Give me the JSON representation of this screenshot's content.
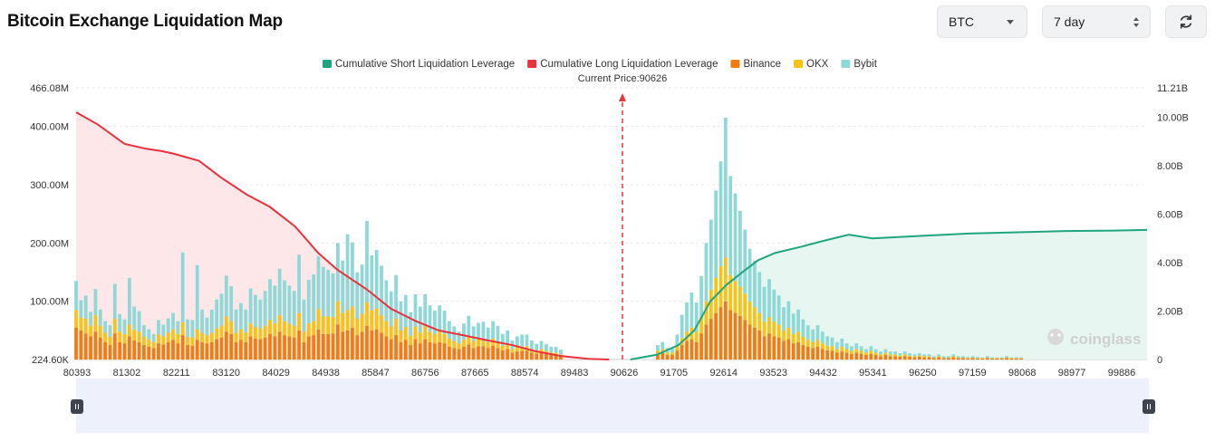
{
  "header": {
    "title": "Bitcoin Exchange Liquidation Map",
    "symbol_select": "BTC",
    "range_select": "7 day",
    "refresh_icon": "refresh-icon"
  },
  "watermark": "coinglass",
  "colors": {
    "short_line": "#1fa67f",
    "short_fill": "#e4f5ef",
    "long_line": "#e8323c",
    "long_fill": "#fde4e6",
    "binance": "#f37c10",
    "okx": "#f7c316",
    "bybit": "#8ed8d8",
    "current_price_line": "#e8323c"
  },
  "chart_data": {
    "type": "bar",
    "current_price_label": "Current Price:90626",
    "current_price": 90626,
    "legend": [
      {
        "name": "Cumulative Short Liquidation Leverage",
        "color": "#1fa67f",
        "shape": "rect"
      },
      {
        "name": "Cumulative Long Liquidation Leverage",
        "color": "#e8323c",
        "shape": "rect"
      },
      {
        "name": "Binance",
        "color": "#f37c10",
        "shape": "rect"
      },
      {
        "name": "OKX",
        "color": "#f7c316",
        "shape": "rect"
      },
      {
        "name": "Bybit",
        "color": "#8ed8d8",
        "shape": "rect"
      }
    ],
    "x_tick_labels": [
      "80393",
      "81302",
      "82211",
      "83120",
      "84029",
      "84938",
      "85847",
      "86756",
      "87665",
      "88574",
      "89483",
      "90626",
      "91705",
      "92614",
      "93523",
      "94432",
      "95341",
      "96250",
      "97159",
      "98068",
      "98977",
      "99886"
    ],
    "y_left_ticks": [
      "224.60K",
      "100.00M",
      "200.00M",
      "300.00M",
      "400.00M",
      "466.08M"
    ],
    "y_left_values": [
      0.2246,
      100,
      200,
      300,
      400,
      466.08
    ],
    "y_left_range": [
      0.2246,
      466.08
    ],
    "y_left_unit": "M",
    "y_right_ticks": [
      "0",
      "2.00B",
      "4.00B",
      "6.00B",
      "8.00B",
      "10.00B",
      "11.21B"
    ],
    "y_right_values": [
      0,
      2,
      4,
      6,
      8,
      10,
      11.21
    ],
    "y_right_range": [
      0,
      11.21
    ],
    "y_right_unit": "B",
    "x_range": [
      80393,
      100500
    ],
    "long_cumulative": {
      "x": [
        80393,
        80800,
        81302,
        81700,
        82000,
        82211,
        82700,
        83120,
        83600,
        84029,
        84500,
        84938,
        85300,
        85847,
        86300,
        86756,
        87200,
        87665,
        88100,
        88574,
        89000,
        89483,
        90000,
        90400
      ],
      "y": [
        10.2,
        9.7,
        8.9,
        8.7,
        8.6,
        8.5,
        8.2,
        7.5,
        6.8,
        6.3,
        5.5,
        4.4,
        3.7,
        2.9,
        2.1,
        1.6,
        1.2,
        1.0,
        0.8,
        0.6,
        0.35,
        0.15,
        0.03,
        0.0
      ]
    },
    "short_cumulative": {
      "x": [
        90800,
        91300,
        91705,
        92000,
        92300,
        92614,
        92900,
        93200,
        93523,
        94000,
        94432,
        94900,
        95341,
        96250,
        97159,
        98068,
        98977,
        99886,
        100500
      ],
      "y": [
        0.0,
        0.2,
        0.6,
        1.2,
        2.4,
        3.1,
        3.6,
        4.1,
        4.4,
        4.65,
        4.9,
        5.15,
        5.0,
        5.1,
        5.2,
        5.25,
        5.3,
        5.32,
        5.35
      ]
    },
    "bars": {
      "x_start": 80393,
      "x_step": 91,
      "binance": [
        55,
        50,
        45,
        40,
        48,
        38,
        30,
        25,
        45,
        30,
        28,
        40,
        33,
        30,
        25,
        22,
        20,
        28,
        26,
        30,
        34,
        28,
        42,
        25,
        24,
        34,
        30,
        28,
        30,
        35,
        38,
        48,
        44,
        30,
        34,
        30,
        40,
        36,
        35,
        38,
        44,
        40,
        48,
        42,
        40,
        38,
        50,
        30,
        40,
        42,
        52,
        44,
        44,
        45,
        60,
        48,
        50,
        55,
        42,
        48,
        58,
        50,
        52,
        46,
        40,
        35,
        42,
        30,
        34,
        25,
        35,
        28,
        35,
        30,
        28,
        30,
        28,
        22,
        20,
        18,
        22,
        26,
        20,
        23,
        23,
        20,
        24,
        20,
        16,
        18,
        12,
        14,
        15,
        15,
        12,
        10,
        12,
        10,
        8,
        8,
        6,
        0,
        0,
        0,
        0,
        0,
        0,
        0,
        0,
        0,
        0,
        0,
        0,
        0,
        0,
        0,
        0,
        0,
        0,
        0,
        10,
        12,
        8,
        8,
        15,
        25,
        32,
        35,
        30,
        45,
        60,
        70,
        80,
        90,
        100,
        85,
        80,
        75,
        68,
        60,
        55,
        50,
        40,
        45,
        40,
        38,
        32,
        35,
        28,
        30,
        25,
        22,
        20,
        22,
        18,
        16,
        15,
        12,
        14,
        12,
        10,
        12,
        10,
        8,
        10,
        8,
        6,
        8,
        6,
        6,
        5,
        6,
        5,
        4,
        5,
        4,
        4,
        3,
        4,
        3,
        3,
        4,
        3,
        3,
        2,
        3,
        2,
        2,
        3,
        2,
        2,
        2,
        3,
        2,
        2,
        2
      ],
      "okx": [
        30,
        22,
        25,
        18,
        28,
        20,
        16,
        14,
        25,
        18,
        16,
        20,
        18,
        18,
        14,
        12,
        10,
        15,
        14,
        16,
        18,
        16,
        22,
        14,
        14,
        18,
        16,
        14,
        16,
        18,
        20,
        26,
        22,
        16,
        18,
        16,
        22,
        20,
        18,
        20,
        24,
        22,
        28,
        24,
        22,
        20,
        30,
        18,
        22,
        24,
        35,
        30,
        30,
        28,
        40,
        32,
        35,
        36,
        28,
        30,
        40,
        34,
        36,
        30,
        26,
        22,
        28,
        20,
        22,
        16,
        22,
        18,
        22,
        18,
        16,
        18,
        16,
        14,
        12,
        10,
        12,
        14,
        12,
        12,
        12,
        10,
        12,
        10,
        8,
        10,
        6,
        8,
        8,
        8,
        6,
        5,
        6,
        5,
        4,
        4,
        3,
        0,
        0,
        0,
        0,
        0,
        0,
        0,
        0,
        0,
        0,
        0,
        0,
        0,
        0,
        0,
        0,
        0,
        0,
        0,
        5,
        6,
        4,
        4,
        8,
        12,
        16,
        20,
        18,
        28,
        40,
        50,
        60,
        70,
        75,
        60,
        55,
        50,
        45,
        40,
        35,
        30,
        25,
        28,
        25,
        22,
        18,
        20,
        16,
        18,
        14,
        12,
        10,
        12,
        10,
        8,
        8,
        6,
        8,
        6,
        5,
        6,
        5,
        4,
        5,
        4,
        3,
        4,
        3,
        3,
        2,
        3,
        2,
        2,
        2,
        2,
        2,
        1,
        2,
        1,
        1,
        2,
        1,
        1,
        1,
        1,
        1,
        1,
        1,
        1,
        1,
        1,
        1,
        1,
        1,
        1
      ],
      "bybit": [
        50,
        30,
        40,
        24,
        45,
        28,
        20,
        20,
        60,
        30,
        25,
        80,
        40,
        35,
        20,
        18,
        14,
        25,
        20,
        25,
        28,
        22,
        120,
        30,
        30,
        110,
        40,
        30,
        40,
        50,
        55,
        70,
        60,
        40,
        45,
        40,
        60,
        55,
        50,
        60,
        70,
        65,
        80,
        70,
        65,
        60,
        100,
        55,
        75,
        80,
        90,
        85,
        80,
        75,
        100,
        90,
        130,
        110,
        80,
        85,
        140,
        95,
        100,
        85,
        70,
        60,
        75,
        50,
        55,
        40,
        55,
        45,
        55,
        45,
        40,
        45,
        40,
        30,
        25,
        20,
        28,
        35,
        25,
        28,
        30,
        25,
        30,
        28,
        20,
        22,
        15,
        18,
        20,
        20,
        15,
        12,
        14,
        12,
        10,
        10,
        8,
        0,
        0,
        0,
        0,
        0,
        0,
        0,
        0,
        0,
        0,
        0,
        0,
        0,
        0,
        0,
        0,
        0,
        0,
        0,
        10,
        12,
        8,
        8,
        20,
        40,
        50,
        60,
        50,
        70,
        100,
        120,
        150,
        180,
        240,
        170,
        150,
        130,
        110,
        90,
        80,
        70,
        60,
        65,
        55,
        50,
        40,
        45,
        35,
        38,
        30,
        25,
        22,
        25,
        20,
        16,
        15,
        12,
        14,
        10,
        8,
        10,
        8,
        6,
        8,
        6,
        5,
        6,
        5,
        5,
        4,
        5,
        4,
        3,
        4,
        3,
        3,
        2,
        3,
        2,
        2,
        3,
        2,
        2,
        2,
        2,
        2,
        1,
        2,
        1,
        1,
        1,
        2,
        1,
        1,
        1
      ]
    }
  }
}
